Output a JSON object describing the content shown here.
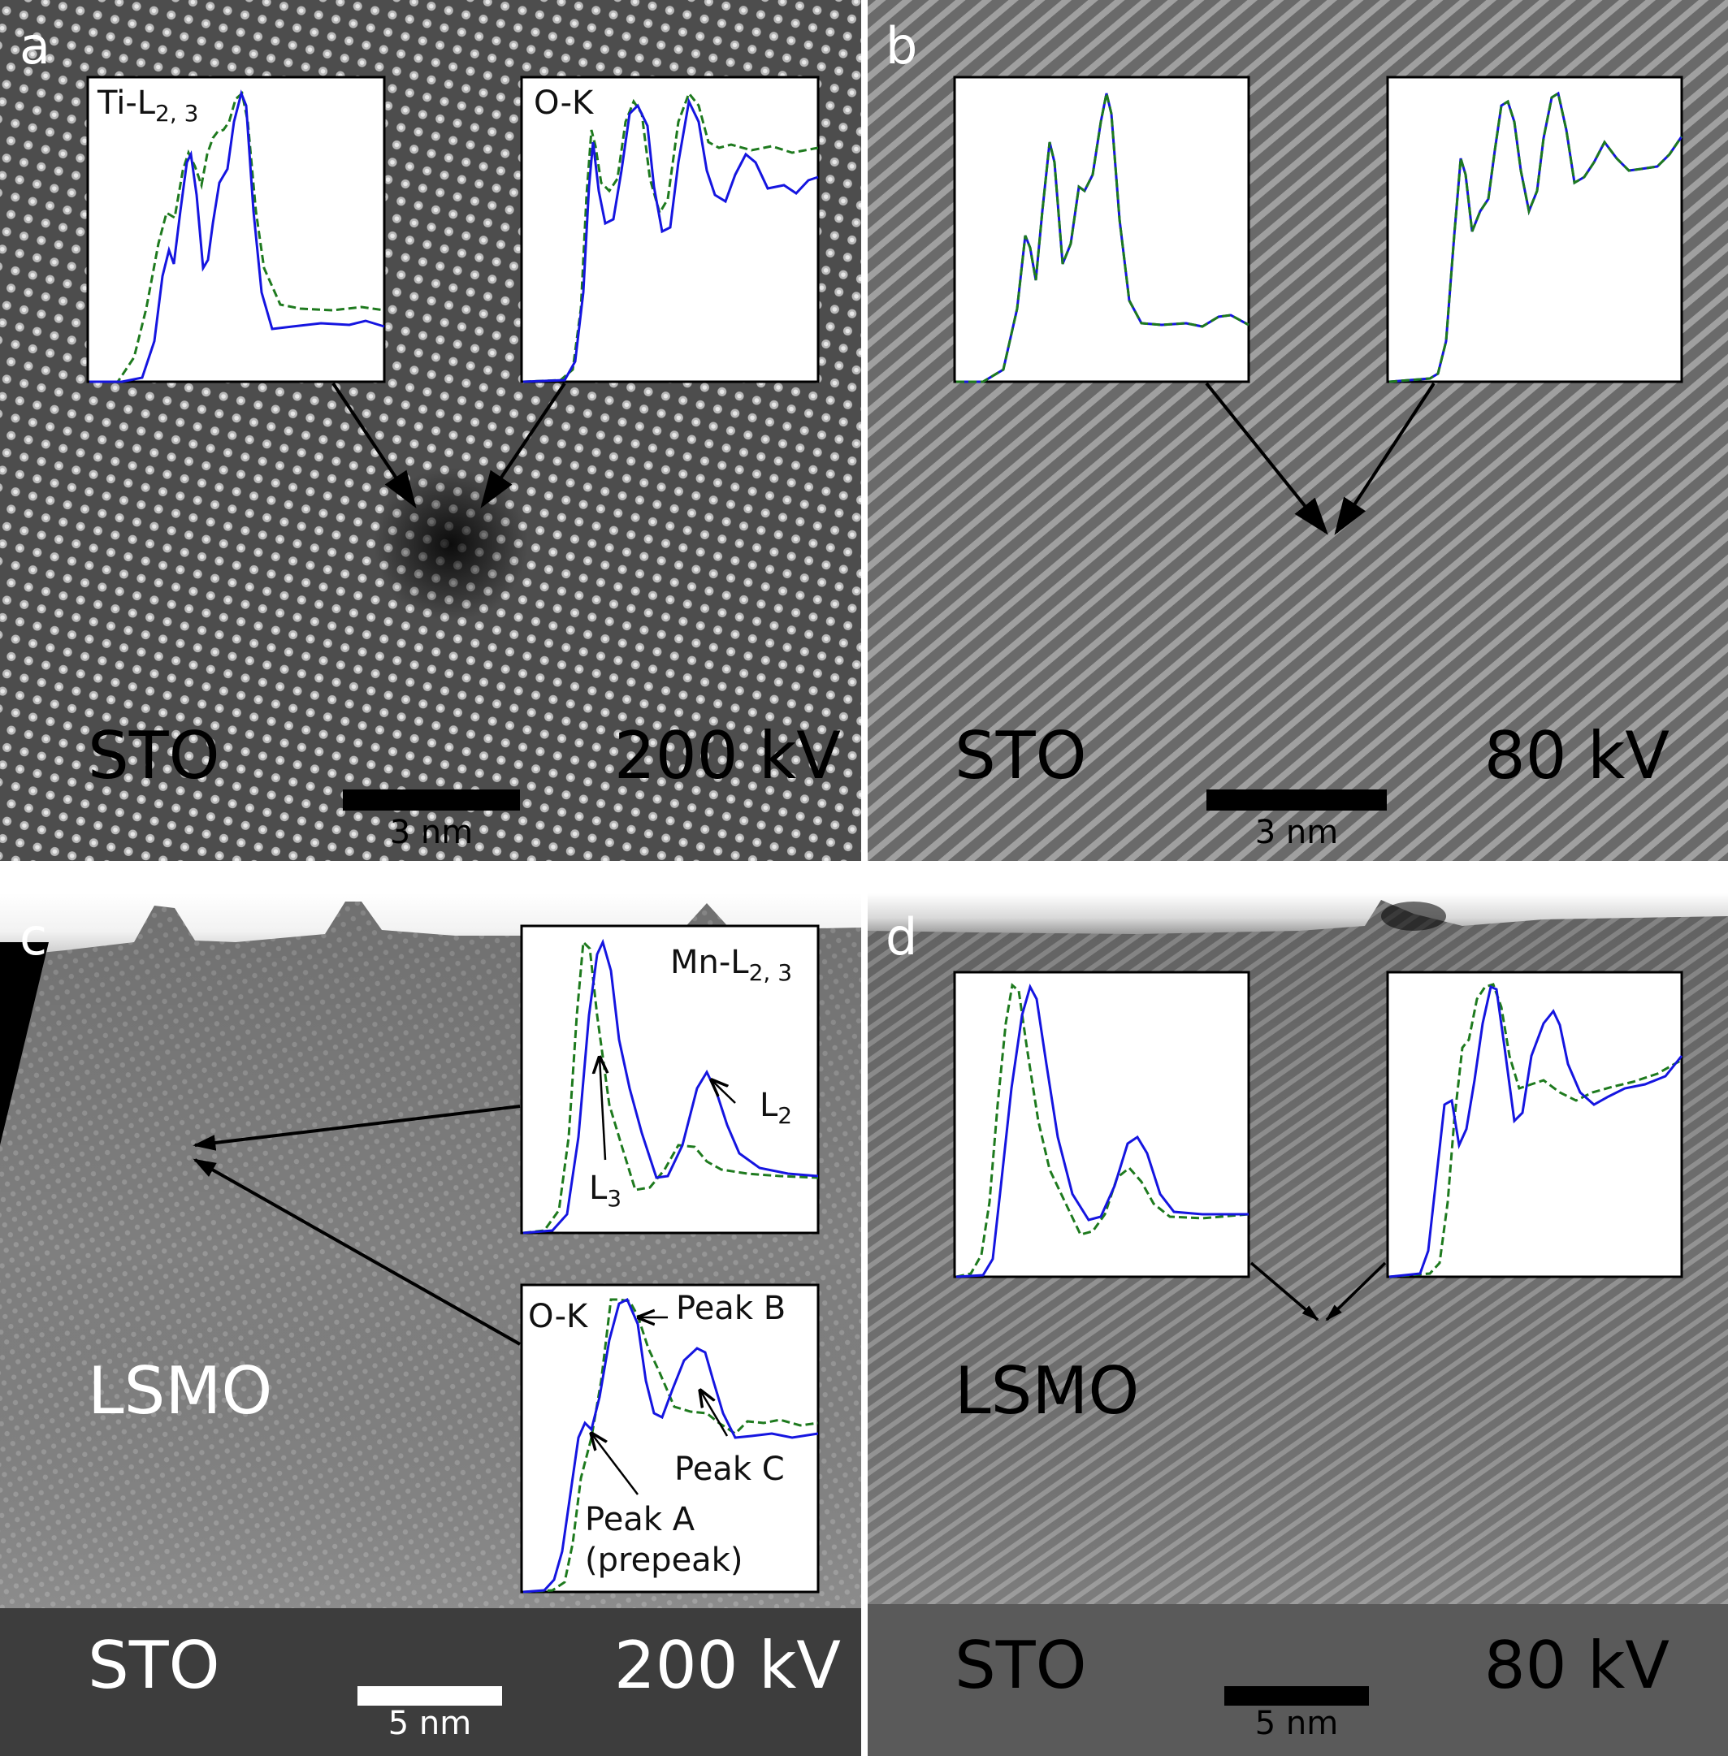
{
  "panels": {
    "a": {
      "letter": "a",
      "material": "STO",
      "voltage": "200 kV",
      "scalebar": "3 nm",
      "inset_left": {
        "element": "Ti-L",
        "subscript": "2, 3"
      },
      "inset_right": {
        "label": "O-K"
      }
    },
    "b": {
      "letter": "b",
      "material": "STO",
      "voltage": "80 kV",
      "scalebar": "3 nm"
    },
    "c": {
      "letter": "c",
      "material_top": "LSMO",
      "material_bottom": "STO",
      "voltage": "200 kV",
      "scalebar": "5 nm",
      "inset_top": {
        "element": "Mn-L",
        "subscript": "2, 3",
        "peak_l2": {
          "main": "L",
          "sub": "2"
        },
        "peak_l3": {
          "main": "L",
          "sub": "3"
        }
      },
      "inset_bottom": {
        "label": "O-K",
        "peak_a": "Peak A",
        "peak_a_note": "(prepeak)",
        "peak_b": "Peak B",
        "peak_c": "Peak C"
      }
    },
    "d": {
      "letter": "d",
      "material_top": "LSMO",
      "material_bottom": "STO",
      "voltage": "80 kV",
      "scalebar": "5 nm"
    }
  },
  "colors": {
    "solid_spectrum": "#1515e0",
    "dashed_spectrum": "#1e7a1e"
  }
}
